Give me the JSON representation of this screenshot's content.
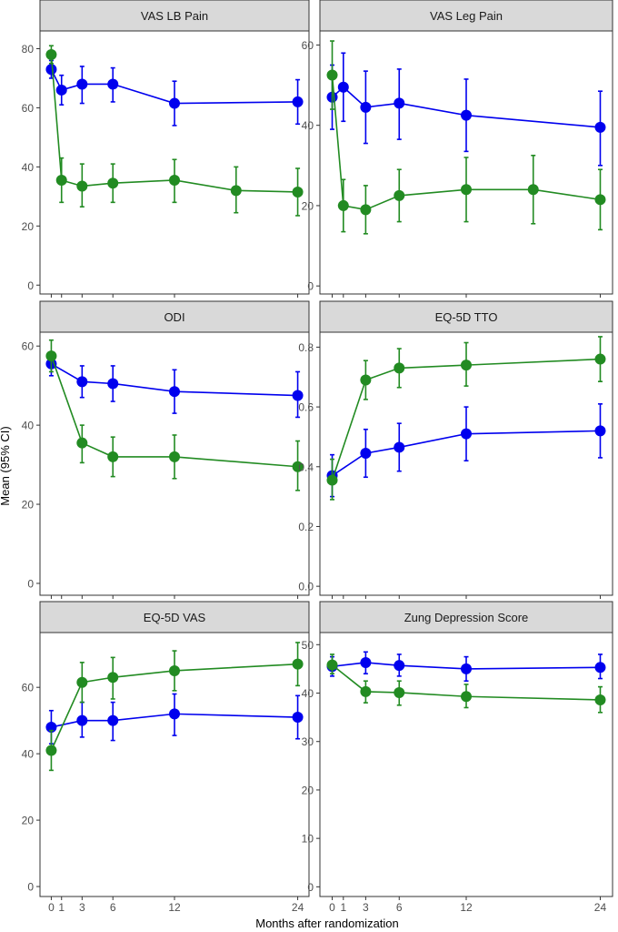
{
  "figure": {
    "ylabel": "Mean (95% CI)",
    "xlabel": "Months after randomization"
  },
  "chart_data": [
    {
      "type": "line",
      "title": "VAS LB Pain",
      "ylim": [
        -3,
        86
      ],
      "yticks": [
        0,
        20,
        40,
        60,
        80
      ],
      "x": [
        0,
        1,
        3,
        6,
        12,
        24
      ],
      "xticks": [
        0,
        1,
        3,
        6,
        12,
        24
      ],
      "series": [
        {
          "color": "#0000ee",
          "points": [
            {
              "x": 0,
              "y": 73,
              "lo": 70,
              "hi": 76
            },
            {
              "x": 1,
              "y": 66,
              "lo": 61,
              "hi": 71
            },
            {
              "x": 3,
              "y": 68,
              "lo": 61.5,
              "hi": 74
            },
            {
              "x": 6,
              "y": 68,
              "lo": 62,
              "hi": 73.5
            },
            {
              "x": 12,
              "y": 61.5,
              "lo": 54,
              "hi": 69
            },
            {
              "x": 24,
              "y": 62,
              "lo": 54.5,
              "hi": 69.5
            }
          ]
        },
        {
          "color": "#228b22",
          "points": [
            {
              "x": 0,
              "y": 78,
              "lo": 75,
              "hi": 81
            },
            {
              "x": 1,
              "y": 35.5,
              "lo": 28,
              "hi": 43
            },
            {
              "x": 3,
              "y": 33.5,
              "lo": 26.5,
              "hi": 41
            },
            {
              "x": 6,
              "y": 34.5,
              "lo": 28,
              "hi": 41
            },
            {
              "x": 12,
              "y": 35.5,
              "lo": 28,
              "hi": 42.5
            },
            {
              "x": 18,
              "y": 32,
              "lo": 24.5,
              "hi": 40
            },
            {
              "x": 24,
              "y": 31.5,
              "lo": 23.5,
              "hi": 39.5
            }
          ]
        }
      ]
    },
    {
      "type": "line",
      "title": "VAS Leg Pain",
      "ylim": [
        -2,
        63.5
      ],
      "yticks": [
        0,
        20,
        40,
        60
      ],
      "x": [
        0,
        1,
        3,
        6,
        12,
        24
      ],
      "xticks": [
        0,
        1,
        3,
        6,
        12,
        24
      ],
      "series": [
        {
          "color": "#0000ee",
          "points": [
            {
              "x": 0,
              "y": 47,
              "lo": 39,
              "hi": 55
            },
            {
              "x": 1,
              "y": 49.5,
              "lo": 41,
              "hi": 58
            },
            {
              "x": 3,
              "y": 44.5,
              "lo": 35.5,
              "hi": 53.5
            },
            {
              "x": 6,
              "y": 45.5,
              "lo": 36.5,
              "hi": 54
            },
            {
              "x": 12,
              "y": 42.5,
              "lo": 33.5,
              "hi": 51.5
            },
            {
              "x": 24,
              "y": 39.5,
              "lo": 30,
              "hi": 48.5
            }
          ]
        },
        {
          "color": "#228b22",
          "points": [
            {
              "x": 0,
              "y": 52.5,
              "lo": 44,
              "hi": 61
            },
            {
              "x": 1,
              "y": 20,
              "lo": 13.5,
              "hi": 26.5
            },
            {
              "x": 3,
              "y": 19,
              "lo": 13,
              "hi": 25
            },
            {
              "x": 6,
              "y": 22.5,
              "lo": 16,
              "hi": 29
            },
            {
              "x": 12,
              "y": 24,
              "lo": 16,
              "hi": 32
            },
            {
              "x": 18,
              "y": 24,
              "lo": 15.5,
              "hi": 32.5
            },
            {
              "x": 24,
              "y": 21.5,
              "lo": 14,
              "hi": 29
            }
          ]
        }
      ]
    },
    {
      "type": "line",
      "title": "ODI",
      "ylim": [
        -3,
        63.5
      ],
      "yticks": [
        0,
        20,
        40,
        60
      ],
      "x": [
        0,
        1,
        3,
        6,
        12,
        24
      ],
      "xticks": [
        0,
        1,
        3,
        6,
        12,
        24
      ],
      "series": [
        {
          "color": "#0000ee",
          "points": [
            {
              "x": 0,
              "y": 55.5,
              "lo": 52.5,
              "hi": 58.5
            },
            {
              "x": 3,
              "y": 51,
              "lo": 47,
              "hi": 55
            },
            {
              "x": 6,
              "y": 50.5,
              "lo": 46,
              "hi": 55
            },
            {
              "x": 12,
              "y": 48.5,
              "lo": 43,
              "hi": 54
            },
            {
              "x": 24,
              "y": 47.5,
              "lo": 42,
              "hi": 53.5
            }
          ]
        },
        {
          "color": "#228b22",
          "points": [
            {
              "x": 0,
              "y": 57.5,
              "lo": 53.5,
              "hi": 61.5
            },
            {
              "x": 3,
              "y": 35.5,
              "lo": 30.5,
              "hi": 40
            },
            {
              "x": 6,
              "y": 32,
              "lo": 27,
              "hi": 37
            },
            {
              "x": 12,
              "y": 32,
              "lo": 26.5,
              "hi": 37.5
            },
            {
              "x": 24,
              "y": 29.5,
              "lo": 23.5,
              "hi": 36
            }
          ]
        }
      ]
    },
    {
      "type": "line",
      "title": "EQ-5D TTO",
      "ylim": [
        -0.03,
        0.85
      ],
      "yticks": [
        0.0,
        0.2,
        0.4,
        0.6,
        0.8
      ],
      "x": [
        0,
        1,
        3,
        6,
        12,
        24
      ],
      "xticks": [
        0,
        1,
        3,
        6,
        12,
        24
      ],
      "series": [
        {
          "color": "#0000ee",
          "points": [
            {
              "x": 0,
              "y": 0.37,
              "lo": 0.3,
              "hi": 0.44
            },
            {
              "x": 3,
              "y": 0.445,
              "lo": 0.365,
              "hi": 0.525
            },
            {
              "x": 6,
              "y": 0.465,
              "lo": 0.385,
              "hi": 0.545
            },
            {
              "x": 12,
              "y": 0.51,
              "lo": 0.42,
              "hi": 0.6
            },
            {
              "x": 24,
              "y": 0.52,
              "lo": 0.43,
              "hi": 0.61
            }
          ]
        },
        {
          "color": "#228b22",
          "points": [
            {
              "x": 0,
              "y": 0.355,
              "lo": 0.29,
              "hi": 0.425
            },
            {
              "x": 3,
              "y": 0.69,
              "lo": 0.625,
              "hi": 0.755
            },
            {
              "x": 6,
              "y": 0.73,
              "lo": 0.665,
              "hi": 0.795
            },
            {
              "x": 12,
              "y": 0.74,
              "lo": 0.67,
              "hi": 0.815
            },
            {
              "x": 24,
              "y": 0.76,
              "lo": 0.685,
              "hi": 0.835
            }
          ]
        }
      ]
    },
    {
      "type": "line",
      "title": "EQ-5D VAS",
      "ylim": [
        -3,
        76.5
      ],
      "yticks": [
        0,
        20,
        40,
        60
      ],
      "x": [
        0,
        1,
        3,
        6,
        12,
        24
      ],
      "xticks": [
        0,
        1,
        3,
        6,
        12,
        24
      ],
      "series": [
        {
          "color": "#0000ee",
          "points": [
            {
              "x": 0,
              "y": 48,
              "lo": 43,
              "hi": 53
            },
            {
              "x": 3,
              "y": 50,
              "lo": 45,
              "hi": 55.5
            },
            {
              "x": 6,
              "y": 50,
              "lo": 44,
              "hi": 55.5
            },
            {
              "x": 12,
              "y": 52,
              "lo": 45.5,
              "hi": 58
            },
            {
              "x": 24,
              "y": 51,
              "lo": 44.5,
              "hi": 57.5
            }
          ]
        },
        {
          "color": "#228b22",
          "points": [
            {
              "x": 0,
              "y": 41,
              "lo": 35,
              "hi": 47
            },
            {
              "x": 3,
              "y": 61.5,
              "lo": 55.5,
              "hi": 67.5
            },
            {
              "x": 6,
              "y": 63,
              "lo": 56.5,
              "hi": 69
            },
            {
              "x": 12,
              "y": 65,
              "lo": 59,
              "hi": 71
            },
            {
              "x": 24,
              "y": 67,
              "lo": 60.5,
              "hi": 73.5
            }
          ]
        }
      ]
    },
    {
      "type": "line",
      "title": "Zung Depression Score",
      "ylim": [
        -2,
        52.5
      ],
      "yticks": [
        0,
        10,
        20,
        30,
        40,
        50
      ],
      "x": [
        0,
        1,
        3,
        6,
        12,
        24
      ],
      "xticks": [
        0,
        1,
        3,
        6,
        12,
        24
      ],
      "series": [
        {
          "color": "#0000ee",
          "points": [
            {
              "x": 0,
              "y": 45.5,
              "lo": 43.5,
              "hi": 47.5
            },
            {
              "x": 3,
              "y": 46.3,
              "lo": 44,
              "hi": 48.5
            },
            {
              "x": 6,
              "y": 45.7,
              "lo": 43.5,
              "hi": 48
            },
            {
              "x": 12,
              "y": 45,
              "lo": 42.5,
              "hi": 47.5
            },
            {
              "x": 24,
              "y": 45.3,
              "lo": 43,
              "hi": 48
            }
          ]
        },
        {
          "color": "#228b22",
          "points": [
            {
              "x": 0,
              "y": 45.8,
              "lo": 44,
              "hi": 48
            },
            {
              "x": 3,
              "y": 40.3,
              "lo": 38,
              "hi": 42.5
            },
            {
              "x": 6,
              "y": 40.1,
              "lo": 37.5,
              "hi": 42.5
            },
            {
              "x": 12,
              "y": 39.3,
              "lo": 37,
              "hi": 41.8
            },
            {
              "x": 24,
              "y": 38.6,
              "lo": 36,
              "hi": 41.3
            }
          ]
        }
      ]
    }
  ]
}
